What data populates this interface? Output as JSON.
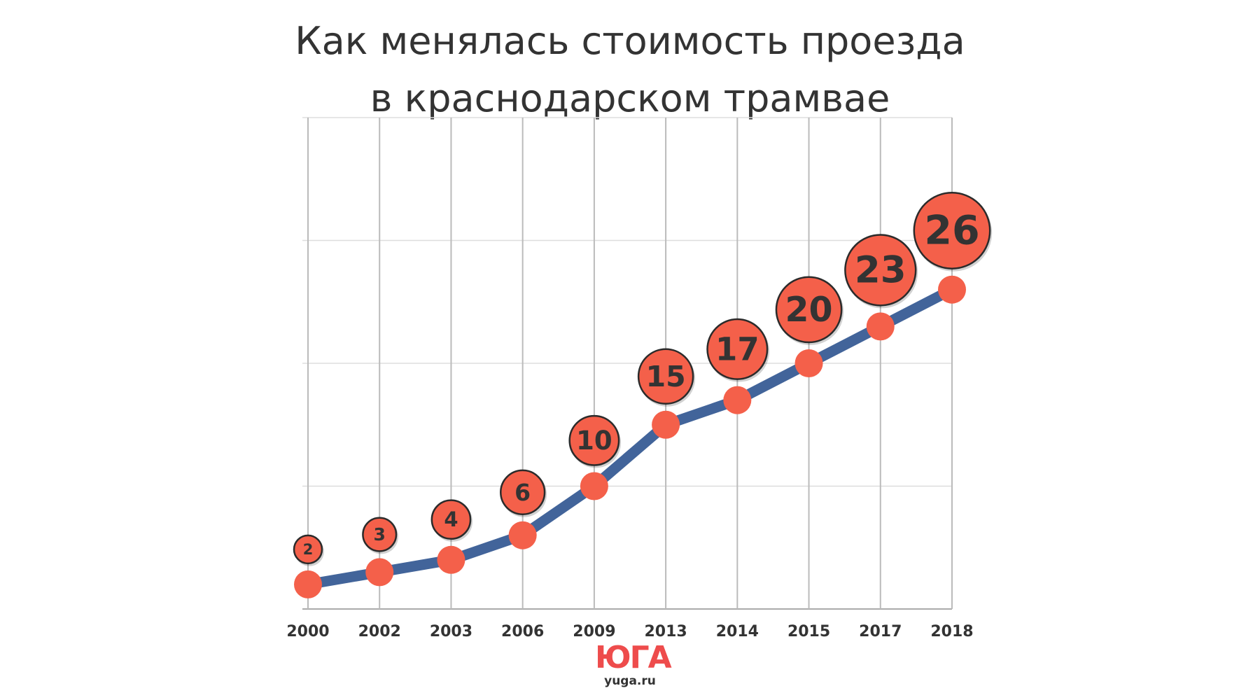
{
  "chart_data": {
    "type": "line",
    "title": "Как менялась стоимость проезда в краснодарском трамвае",
    "title_lines": [
      "Как менялась стоимость проезда",
      "в краснодарском трамвае"
    ],
    "xlabel": "",
    "ylabel": "",
    "categories": [
      "2000",
      "2002",
      "2003",
      "2006",
      "2009",
      "2013",
      "2014",
      "2015",
      "2017",
      "2018"
    ],
    "series": [
      {
        "values": [
          2,
          3,
          4,
          6,
          10,
          15,
          17,
          20,
          23,
          26
        ]
      }
    ],
    "data_labels": [
      "2",
      "3",
      "4",
      "6",
      "10",
      "15",
      "17",
      "20",
      "23",
      "26"
    ],
    "ylim": [
      0,
      40
    ],
    "y_gridlines": [
      0,
      10,
      20,
      30,
      40
    ],
    "grid": true,
    "legend": "none",
    "colors": {
      "line": "#42649a",
      "marker": "#f4604a",
      "label_fill": "#f4604a",
      "label_stroke": "#2b2b2b",
      "label_text": "#333333",
      "grid": "#dddddd",
      "vgrid": "#bbbbbb",
      "tick_text": "#333333"
    }
  },
  "logo": {
    "mark": "ЮГА",
    "site": "yuga.ru",
    "color": "#ee4c4c"
  }
}
